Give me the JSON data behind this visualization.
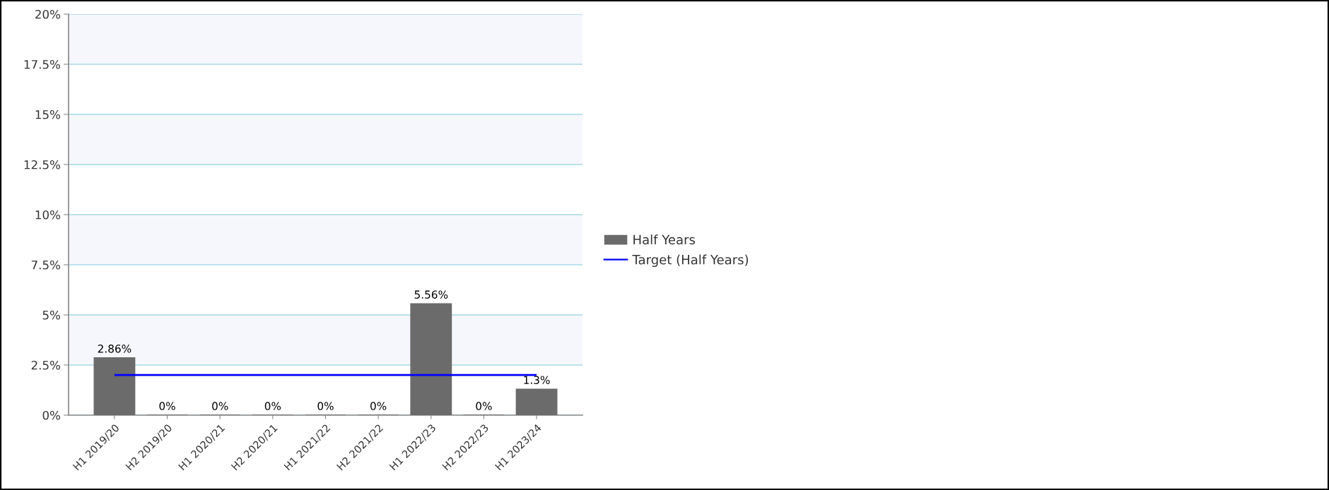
{
  "chart_data": {
    "type": "bar",
    "categories": [
      "H1 2019/20",
      "H2 2019/20",
      "H1 2020/21",
      "H2 2020/21",
      "H1 2021/22",
      "H2 2021/22",
      "H1 2022/23",
      "H2 2022/23",
      "H1 2023/24"
    ],
    "series": [
      {
        "name": "Half Years",
        "color": "#6b6b6b",
        "values": [
          2.86,
          0,
          0,
          0,
          0,
          0,
          5.56,
          0,
          1.3
        ],
        "value_labels": [
          "2.86%",
          "0%",
          "0%",
          "0%",
          "0%",
          "0%",
          "5.56%",
          "0%",
          "1.3%"
        ]
      },
      {
        "name": "Target (Half Years)",
        "type": "line",
        "color": "#0000ff",
        "line_style": "solid",
        "values": [
          2,
          2,
          2,
          2,
          2,
          2,
          2,
          2,
          2
        ]
      }
    ],
    "ylim": [
      0,
      20
    ],
    "yticks": [
      {
        "value": 0,
        "label": "0%"
      },
      {
        "value": 2.5,
        "label": "2.5%"
      },
      {
        "value": 5,
        "label": "5%"
      },
      {
        "value": 7.5,
        "label": "7.5%"
      },
      {
        "value": 10,
        "label": "10%"
      },
      {
        "value": 12.5,
        "label": "12.5%"
      },
      {
        "value": 15,
        "label": "15%"
      },
      {
        "value": 17.5,
        "label": "17.5%"
      },
      {
        "value": 20,
        "label": "20%"
      }
    ],
    "bands": [
      {
        "axis": "y",
        "from": 2.5,
        "to": 5,
        "color": "#f6f7fc"
      },
      {
        "axis": "y",
        "from": 7.5,
        "to": 10,
        "color": "#f6f7fc"
      },
      {
        "axis": "y",
        "from": 12.5,
        "to": 15,
        "color": "#f6f7fc"
      },
      {
        "axis": "y",
        "from": 17.5,
        "to": 20,
        "color": "#f6f7fc"
      }
    ],
    "grid": "y",
    "legend": "right"
  }
}
